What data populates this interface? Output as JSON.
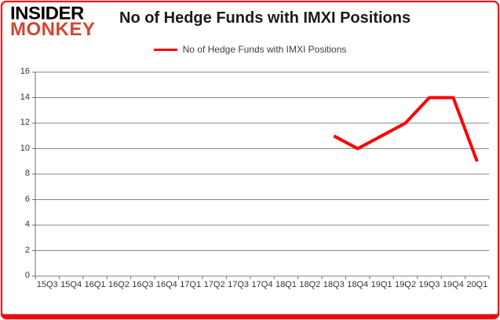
{
  "frame": {
    "border_color": "#fb0207",
    "background": "#ffffff"
  },
  "logo": {
    "line1": "INSIDER",
    "line2": "MONKEY",
    "line1_color": "#000000",
    "line2_color": "#d1472f"
  },
  "header": {
    "title": "No of Hedge Funds with IMXI Positions"
  },
  "legend": {
    "label": "No of Hedge Funds with IMXI Positions",
    "line_color": "#ff0000"
  },
  "chart_data": {
    "type": "line",
    "title": "No of Hedge Funds with IMXI Positions",
    "categories": [
      "15Q3",
      "15Q4",
      "16Q1",
      "16Q2",
      "16Q3",
      "16Q4",
      "17Q1",
      "17Q2",
      "17Q3",
      "17Q4",
      "18Q1",
      "18Q2",
      "18Q3",
      "18Q4",
      "19Q1",
      "19Q2",
      "19Q3",
      "19Q4",
      "20Q1"
    ],
    "series": [
      {
        "name": "No of Hedge Funds with IMXI Positions",
        "color": "#ff0000",
        "values": [
          null,
          null,
          null,
          null,
          null,
          null,
          null,
          null,
          null,
          null,
          null,
          null,
          11,
          10,
          11,
          12,
          14,
          14,
          9
        ]
      }
    ],
    "ylim": [
      0,
      16
    ],
    "yticks": [
      0,
      2,
      4,
      6,
      8,
      10,
      12,
      14,
      16
    ],
    "grid": true,
    "legend_position": "top",
    "gridline_color": "#878787",
    "axis_color": "#6e6e6e"
  }
}
